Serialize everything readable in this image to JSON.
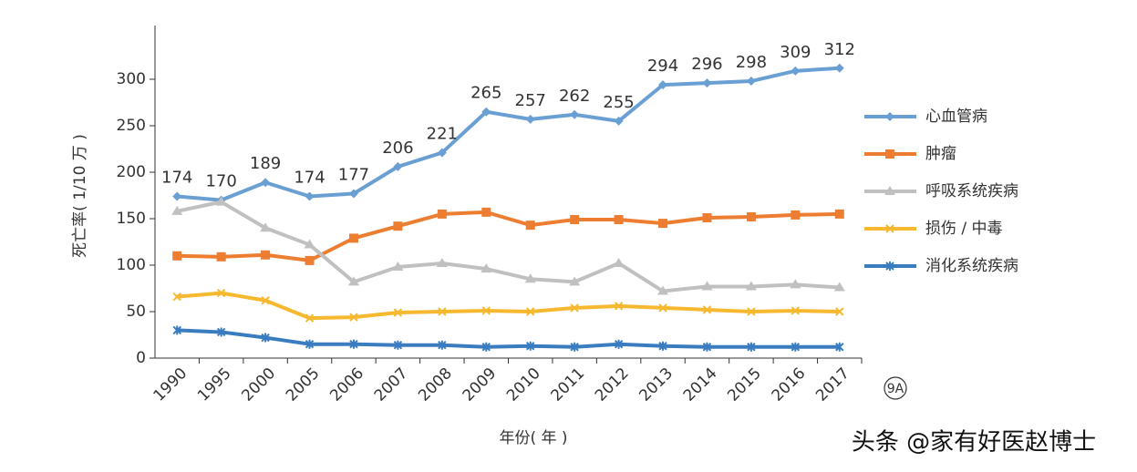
{
  "chart_data": {
    "type": "line",
    "y_label": "死亡率( 1/10 万 )",
    "x_label": "年份( 年 )",
    "annotation": "9A",
    "watermark": "头条 @家有好医赵博士",
    "categories": [
      "1990",
      "1995",
      "2000",
      "2005",
      "2006",
      "2007",
      "2008",
      "2009",
      "2010",
      "2011",
      "2012",
      "2013",
      "2014",
      "2015",
      "2016",
      "2017"
    ],
    "ylim": [
      0,
      350
    ],
    "yticks": [
      0,
      50,
      100,
      150,
      200,
      250,
      300
    ],
    "series": [
      {
        "name": "心血管病",
        "color": "#6a9fd4",
        "marker": "diamond",
        "show_values": true,
        "values": [
          174,
          170,
          189,
          174,
          177,
          206,
          221,
          265,
          257,
          262,
          255,
          294,
          296,
          298,
          309,
          312
        ]
      },
      {
        "name": "肿瘤",
        "color": "#ed7d31",
        "marker": "square",
        "values": [
          110,
          109,
          111,
          105,
          129,
          142,
          155,
          157,
          143,
          149,
          149,
          145,
          151,
          152,
          154,
          155
        ]
      },
      {
        "name": "呼吸系统疾病",
        "color": "#c0c0c0",
        "marker": "triangle",
        "values": [
          158,
          168,
          140,
          122,
          82,
          98,
          102,
          96,
          85,
          82,
          102,
          72,
          77,
          77,
          79,
          76
        ]
      },
      {
        "name": "损伤 / 中毒",
        "color": "#f5b82e",
        "marker": "cross",
        "values": [
          66,
          70,
          62,
          43,
          44,
          49,
          50,
          51,
          50,
          54,
          56,
          54,
          52,
          50,
          51,
          50
        ]
      },
      {
        "name": "消化系统疾病",
        "color": "#3a7cc0",
        "marker": "star",
        "values": [
          30,
          28,
          22,
          15,
          15,
          14,
          14,
          12,
          13,
          12,
          15,
          13,
          12,
          12,
          12,
          12
        ]
      }
    ]
  }
}
